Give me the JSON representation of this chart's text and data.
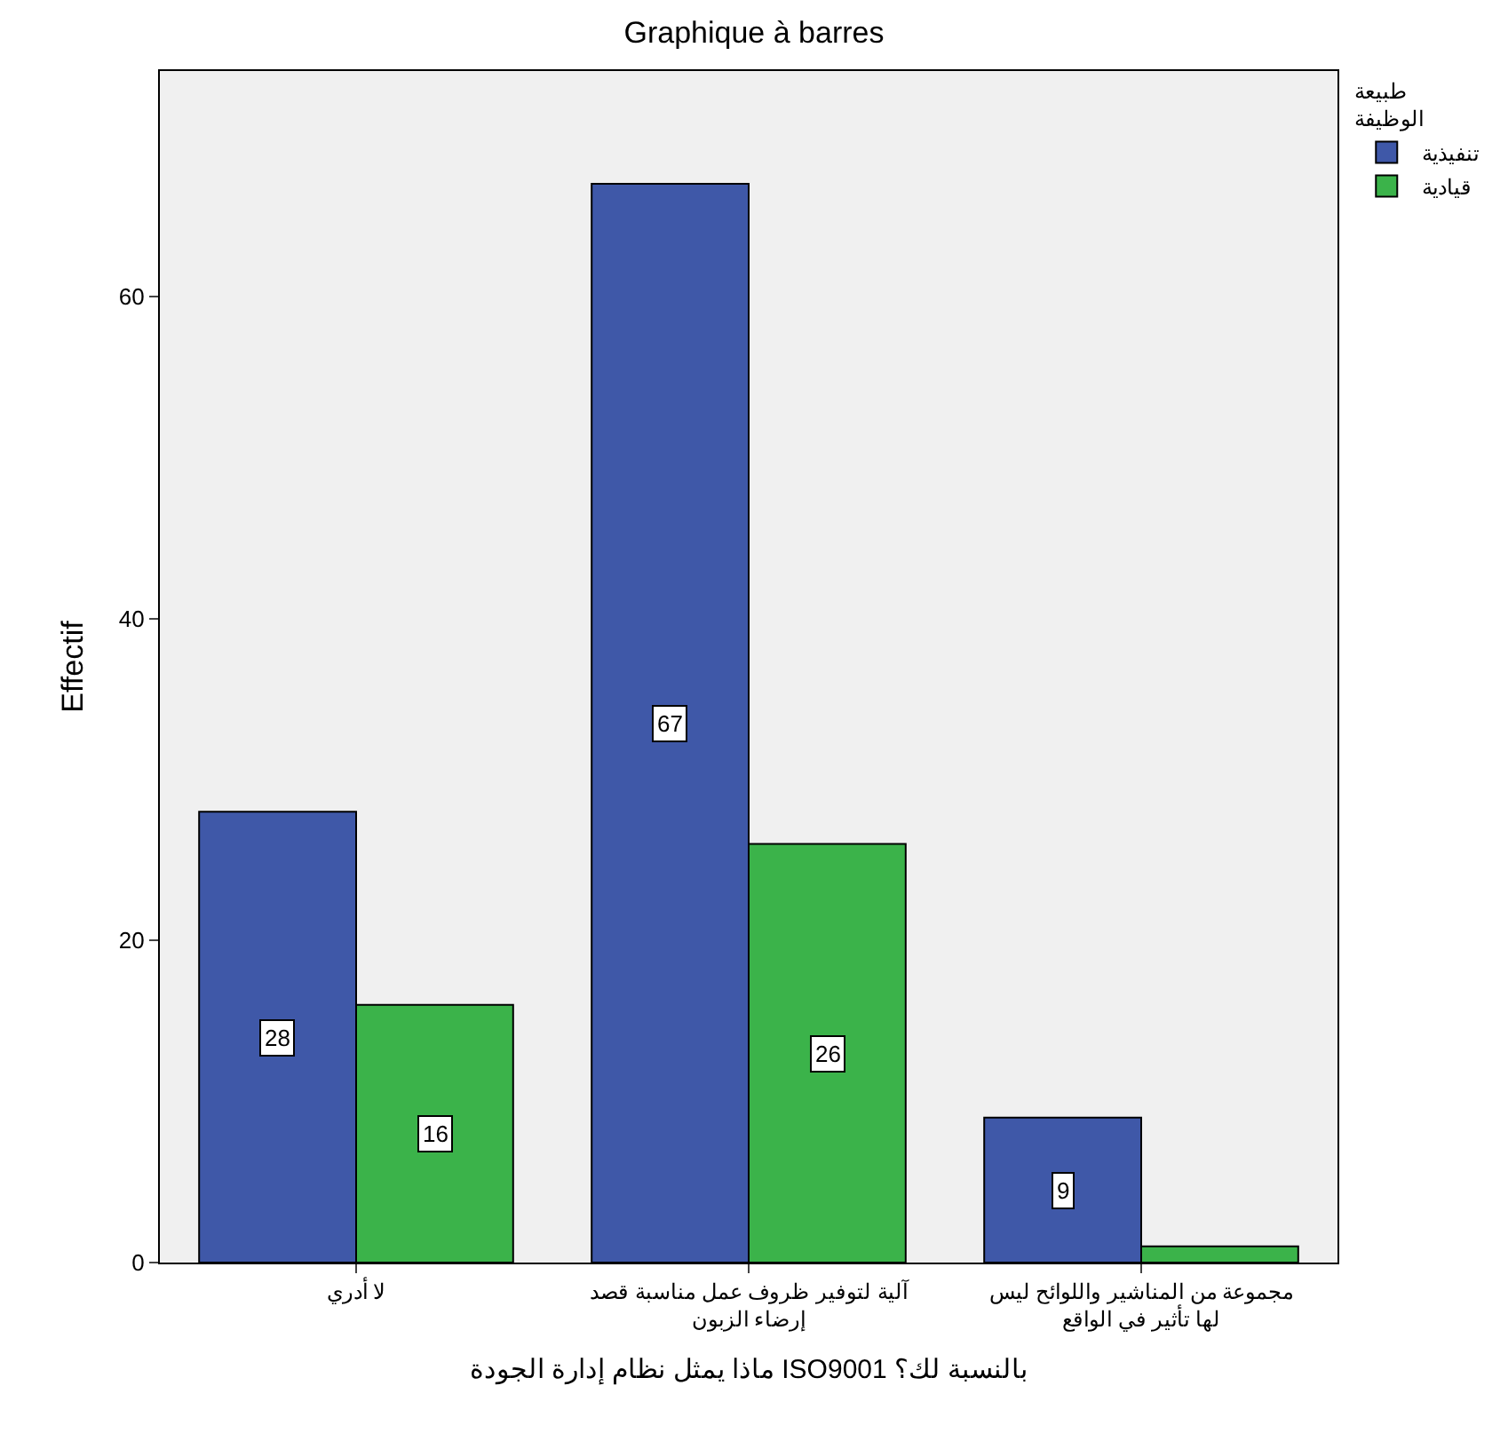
{
  "chart_data": {
    "type": "bar",
    "title": "Graphique à barres",
    "xlabel": "ماذا يمثل نظام إدارة الجودة ISO9001 بالنسبة لك؟",
    "ylabel": "Effectif",
    "legend_title": "طبيعة الوظيفة",
    "categories": [
      "لا أدري",
      "آلية لتوفير ظروف عمل مناسبة قصد إرضاء الزبون",
      "مجموعة من المناشير واللوائح ليس لها تأثير في الواقع"
    ],
    "series": [
      {
        "name": "تنفيذية",
        "color": "#3f58a8",
        "values": [
          28,
          67,
          9
        ],
        "value_labels": [
          "28",
          "67",
          "9"
        ]
      },
      {
        "name": "قيادية",
        "color": "#3bb34a",
        "values": [
          16,
          26,
          1
        ],
        "value_labels": [
          "16",
          "26",
          null
        ]
      }
    ],
    "ylim": [
      0,
      74
    ],
    "yticks": [
      0,
      20,
      40,
      60
    ],
    "grid": false,
    "legend": "top right"
  }
}
